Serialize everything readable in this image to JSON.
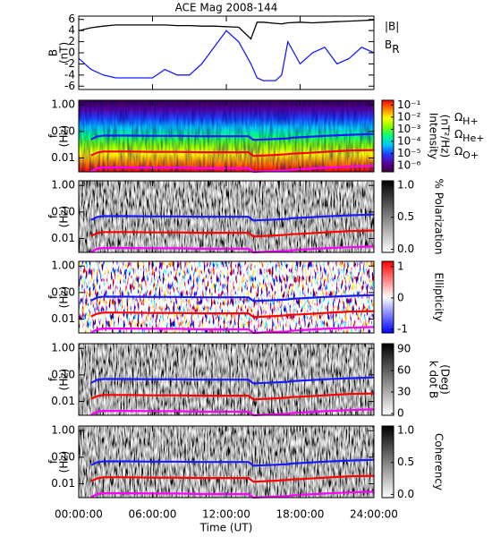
{
  "chart_data": [
    {
      "type": "line",
      "title": "ACE Mag 2008-144",
      "ylabel": [
        "B",
        "(nT)"
      ],
      "xlim": [
        0,
        24
      ],
      "ylim": [
        -6.6,
        6.6
      ],
      "yticks": [
        6,
        4,
        2,
        0,
        -2,
        -4,
        -6
      ],
      "legend": true,
      "x": [
        0,
        1,
        2,
        3,
        4,
        5,
        6,
        7,
        8,
        9,
        10,
        11,
        12,
        13,
        14,
        14.5,
        15,
        16,
        16.5,
        17,
        18,
        19,
        20,
        21,
        22,
        23,
        24
      ],
      "series": [
        {
          "name": "|B|",
          "color": "#000000",
          "values": [
            4.0,
            4.5,
            4.8,
            5.0,
            5.0,
            5.0,
            5.0,
            5.0,
            4.9,
            4.9,
            4.8,
            4.8,
            4.7,
            4.6,
            2.5,
            5.5,
            5.5,
            5.3,
            5.2,
            5.4,
            5.5,
            5.4,
            5.5,
            5.6,
            5.7,
            5.8,
            5.9
          ]
        },
        {
          "name": "BR",
          "color": "#1a1aff",
          "values": [
            -1.0,
            -3.0,
            -4.0,
            -4.5,
            -4.5,
            -4.5,
            -4.5,
            -3.0,
            -4.0,
            -4.0,
            -2.0,
            1.0,
            4.0,
            2.0,
            -2.0,
            -4.5,
            -5.0,
            -5.0,
            -4.0,
            2.0,
            -2.0,
            0.0,
            1.0,
            -2.0,
            -1.0,
            1.0,
            0.0
          ]
        }
      ]
    },
    {
      "type": "spectrogram",
      "ylabel": [
        "f",
        "(Hz)"
      ],
      "xlim": [
        0,
        24
      ],
      "ylim": [
        0.003,
        1.5
      ],
      "ylog": true,
      "yticks": [
        {
          "value": 1,
          "label": "1.00"
        },
        {
          "value": 0.1,
          "label": "0.10"
        },
        {
          "value": 0.01,
          "label": "0.01"
        }
      ],
      "zlabel": [
        "Intensity",
        "(nT²/Hz)"
      ],
      "zlog": true,
      "zlim": [
        3e-07,
        0.25
      ],
      "zticks": [
        {
          "value": 0.1,
          "label": "10⁻¹"
        },
        {
          "value": 0.01,
          "label": "10⁻²"
        },
        {
          "value": 0.001,
          "label": "10⁻³"
        },
        {
          "value": 0.0001,
          "label": "10⁻⁴"
        },
        {
          "value": 1e-05,
          "label": "10⁻⁵"
        },
        {
          "value": 1e-06,
          "label": "10⁻⁶"
        }
      ],
      "colormap": [
        "#3a0040",
        "#5a00a0",
        "#2040ff",
        "#00c8ff",
        "#00ff80",
        "#80ff00",
        "#ffff00",
        "#ff8000",
        "#ff0000"
      ],
      "legend": true,
      "x": [
        1,
        1.5,
        2,
        4,
        6,
        8,
        10,
        12,
        13.8,
        14.2,
        16,
        17,
        17.3,
        18,
        20,
        22,
        24
      ],
      "series": [
        {
          "name": "ΩH+",
          "color": "#1a1aff",
          "values": [
            0.05,
            0.065,
            0.07,
            0.07,
            0.068,
            0.068,
            0.066,
            0.066,
            0.066,
            0.048,
            0.052,
            0.055,
            0.058,
            0.06,
            0.068,
            0.075,
            0.08
          ]
        },
        {
          "name": "ΩHe+",
          "color": "#ff0000",
          "values": [
            0.0125,
            0.016,
            0.0175,
            0.0175,
            0.017,
            0.017,
            0.0165,
            0.0165,
            0.0165,
            0.012,
            0.013,
            0.014,
            0.0145,
            0.015,
            0.017,
            0.019,
            0.02
          ]
        },
        {
          "name": "ΩO+",
          "color": "#ff00ff",
          "values": [
            0.0031,
            0.0041,
            0.0044,
            0.0044,
            0.0043,
            0.0043,
            0.0041,
            0.0041,
            0.0041,
            0.003,
            0.0033,
            0.0034,
            0.0036,
            0.0038,
            0.0043,
            0.0047,
            0.005
          ]
        }
      ]
    },
    {
      "type": "spectrogram",
      "ylabel": [
        "f",
        "(Hz)"
      ],
      "xlim": [
        0,
        24
      ],
      "ylim": [
        0.003,
        1.5
      ],
      "ylog": true,
      "yticks": [
        {
          "value": 1,
          "label": "1.00"
        },
        {
          "value": 0.1,
          "label": "0.10"
        },
        {
          "value": 0.01,
          "label": "0.01"
        }
      ],
      "zlabel": [
        "% Polarization"
      ],
      "zlim": [
        -0.05,
        1.07
      ],
      "zticks": [
        {
          "value": 1,
          "label": "1.0"
        },
        {
          "value": 0.5,
          "label": "0.5"
        },
        {
          "value": 0,
          "label": "0.0"
        }
      ],
      "colormap": [
        "#ffffff",
        "#000000"
      ],
      "x": [
        1,
        1.5,
        2,
        4,
        6,
        8,
        10,
        12,
        13.8,
        14.2,
        16,
        17,
        17.3,
        18,
        20,
        22,
        24
      ],
      "series": [
        {
          "color": "#1a1aff",
          "values": [
            0.05,
            0.065,
            0.07,
            0.07,
            0.068,
            0.068,
            0.066,
            0.066,
            0.066,
            0.048,
            0.052,
            0.055,
            0.058,
            0.06,
            0.068,
            0.075,
            0.08
          ]
        },
        {
          "color": "#ff0000",
          "values": [
            0.0125,
            0.016,
            0.0175,
            0.0175,
            0.017,
            0.017,
            0.0165,
            0.0165,
            0.0165,
            0.012,
            0.013,
            0.014,
            0.0145,
            0.015,
            0.017,
            0.019,
            0.02
          ]
        },
        {
          "color": "#ff00ff",
          "values": [
            0.0031,
            0.0041,
            0.0044,
            0.0044,
            0.0043,
            0.0043,
            0.0041,
            0.0041,
            0.0041,
            0.003,
            0.0033,
            0.0034,
            0.0036,
            0.0038,
            0.0043,
            0.0047,
            0.005
          ]
        }
      ]
    },
    {
      "type": "spectrogram",
      "ylabel": [
        "f",
        "(Hz)"
      ],
      "xlim": [
        0,
        24
      ],
      "ylim": [
        0.003,
        1.5
      ],
      "ylog": true,
      "yticks": [
        {
          "value": 1,
          "label": "1.00"
        },
        {
          "value": 0.1,
          "label": "0.10"
        },
        {
          "value": 0.01,
          "label": "0.01"
        }
      ],
      "zlabel": [
        "Ellipticity"
      ],
      "zlim": [
        -1.12,
        1.17
      ],
      "zticks": [
        1,
        0,
        -1
      ],
      "colormap": [
        "#0000ff",
        "#ffffff",
        "#ff0000"
      ],
      "x": [
        1,
        1.5,
        2,
        4,
        6,
        8,
        10,
        12,
        13.8,
        14.2,
        16,
        17,
        17.3,
        18,
        20,
        22,
        24
      ],
      "series": [
        {
          "color": "#1a1aff",
          "values": [
            0.05,
            0.065,
            0.07,
            0.07,
            0.068,
            0.068,
            0.066,
            0.066,
            0.066,
            0.048,
            0.052,
            0.055,
            0.058,
            0.06,
            0.068,
            0.075,
            0.08
          ]
        },
        {
          "color": "#ff0000",
          "values": [
            0.0125,
            0.016,
            0.0175,
            0.0175,
            0.017,
            0.017,
            0.0165,
            0.0165,
            0.0165,
            0.012,
            0.013,
            0.014,
            0.0145,
            0.015,
            0.017,
            0.019,
            0.02
          ]
        },
        {
          "color": "#ff00ff",
          "values": [
            0.0031,
            0.0041,
            0.0044,
            0.0044,
            0.0043,
            0.0043,
            0.0041,
            0.0041,
            0.0041,
            0.003,
            0.0033,
            0.0034,
            0.0036,
            0.0038,
            0.0043,
            0.0047,
            0.005
          ]
        }
      ]
    },
    {
      "type": "spectrogram",
      "ylabel": [
        "f",
        "(Hz)"
      ],
      "xlim": [
        0,
        24
      ],
      "ylim": [
        0.003,
        1.5
      ],
      "ylog": true,
      "yticks": [
        {
          "value": 1,
          "label": "1.00"
        },
        {
          "value": 0.1,
          "label": "0.10"
        },
        {
          "value": 0.01,
          "label": "0.01"
        }
      ],
      "zlabel": [
        "k dot B",
        "(Deg)"
      ],
      "zlim": [
        -2.5,
        97.5
      ],
      "zticks": [
        90,
        60,
        30,
        0
      ],
      "colormap": [
        "#ffffff",
        "#000000"
      ],
      "x": [
        1,
        1.5,
        2,
        4,
        6,
        8,
        10,
        12,
        13.8,
        14.2,
        16,
        17,
        17.3,
        18,
        20,
        22,
        24
      ],
      "series": [
        {
          "color": "#1a1aff",
          "values": [
            0.05,
            0.065,
            0.07,
            0.07,
            0.068,
            0.068,
            0.066,
            0.066,
            0.066,
            0.048,
            0.052,
            0.055,
            0.058,
            0.06,
            0.068,
            0.075,
            0.08
          ]
        },
        {
          "color": "#ff0000",
          "values": [
            0.0125,
            0.016,
            0.0175,
            0.0175,
            0.017,
            0.017,
            0.0165,
            0.0165,
            0.0165,
            0.012,
            0.013,
            0.014,
            0.0145,
            0.015,
            0.017,
            0.019,
            0.02
          ]
        },
        {
          "color": "#ff00ff",
          "values": [
            0.0031,
            0.0041,
            0.0044,
            0.0044,
            0.0043,
            0.0043,
            0.0041,
            0.0041,
            0.0041,
            0.003,
            0.0033,
            0.0034,
            0.0036,
            0.0038,
            0.0043,
            0.0047,
            0.005
          ]
        }
      ]
    },
    {
      "type": "spectrogram",
      "ylabel": [
        "f",
        "(Hz)"
      ],
      "xlabel": "Time (UT)",
      "xlim": [
        0,
        24
      ],
      "ylim": [
        0.003,
        1.5
      ],
      "ylog": true,
      "yticks": [
        {
          "value": 1,
          "label": "1.00"
        },
        {
          "value": 0.1,
          "label": "0.10"
        },
        {
          "value": 0.01,
          "label": "0.01"
        }
      ],
      "xticks": [
        {
          "value": 0,
          "label": "00:00:00"
        },
        {
          "value": 6,
          "label": "06:00:00"
        },
        {
          "value": 12,
          "label": "12:00:00"
        },
        {
          "value": 18,
          "label": "18:00:00"
        },
        {
          "value": 24,
          "label": "24:00:00"
        }
      ],
      "zlabel": [
        "Coherency"
      ],
      "zlim": [
        -0.05,
        1.07
      ],
      "zticks": [
        {
          "value": 1,
          "label": "1.0"
        },
        {
          "value": 0.5,
          "label": "0.5"
        },
        {
          "value": 0,
          "label": "0.0"
        }
      ],
      "colormap": [
        "#ffffff",
        "#000000"
      ],
      "x": [
        1,
        1.5,
        2,
        4,
        6,
        8,
        10,
        12,
        13.8,
        14.2,
        16,
        17,
        17.3,
        18,
        20,
        22,
        24
      ],
      "series": [
        {
          "color": "#1a1aff",
          "values": [
            0.05,
            0.065,
            0.07,
            0.07,
            0.068,
            0.068,
            0.066,
            0.066,
            0.066,
            0.048,
            0.052,
            0.055,
            0.058,
            0.06,
            0.068,
            0.075,
            0.08
          ]
        },
        {
          "color": "#ff0000",
          "values": [
            0.0125,
            0.016,
            0.0175,
            0.0175,
            0.017,
            0.017,
            0.0165,
            0.0165,
            0.0165,
            0.012,
            0.013,
            0.014,
            0.0145,
            0.015,
            0.017,
            0.019,
            0.02
          ]
        },
        {
          "color": "#ff00ff",
          "values": [
            0.0031,
            0.0041,
            0.0044,
            0.0044,
            0.0043,
            0.0043,
            0.0041,
            0.0041,
            0.0041,
            0.003,
            0.0033,
            0.0034,
            0.0036,
            0.0038,
            0.0043,
            0.0047,
            0.005
          ]
        }
      ]
    }
  ]
}
